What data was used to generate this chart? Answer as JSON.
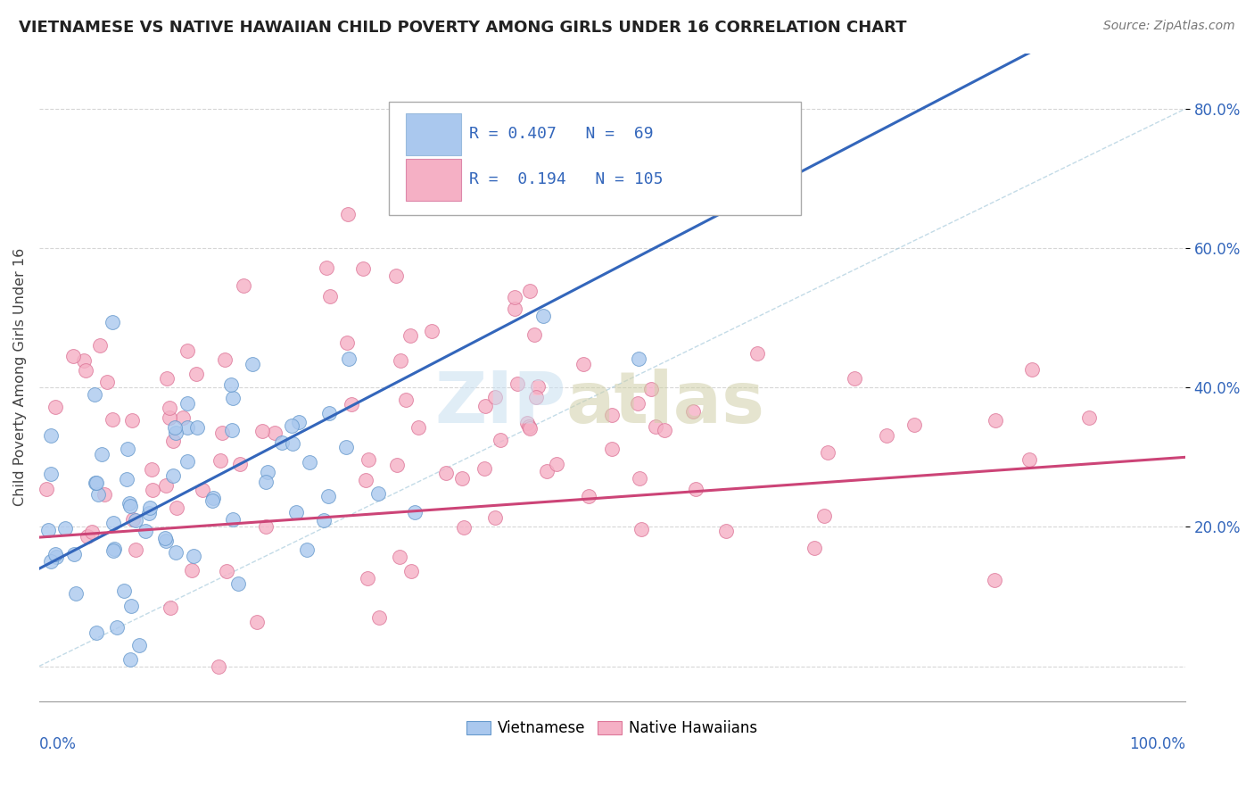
{
  "title": "VIETNAMESE VS NATIVE HAWAIIAN CHILD POVERTY AMONG GIRLS UNDER 16 CORRELATION CHART",
  "source": "Source: ZipAtlas.com",
  "ylabel": "Child Poverty Among Girls Under 16",
  "ytick_vals": [
    0.0,
    0.2,
    0.4,
    0.6,
    0.8
  ],
  "ytick_labels": [
    "0.0%",
    "20.0%",
    "40.0%",
    "60.0%",
    "80.0%"
  ],
  "series": [
    {
      "name": "Vietnamese",
      "R": 0.407,
      "N": 69,
      "color": "#aac8ee",
      "edge_color": "#6699cc",
      "line_color": "#3366bb"
    },
    {
      "name": "Native Hawaiians",
      "R": 0.194,
      "N": 105,
      "color": "#f5b0c5",
      "edge_color": "#dd7799",
      "line_color": "#cc4477"
    }
  ],
  "background_color": "#ffffff",
  "grid_color": "#cccccc",
  "xlim": [
    0.0,
    1.0
  ],
  "ylim": [
    -0.05,
    0.88
  ],
  "legend_R_color": "#3366bb",
  "legend_N_color": "#333333",
  "legend_N_bold_color": "#3366bb"
}
